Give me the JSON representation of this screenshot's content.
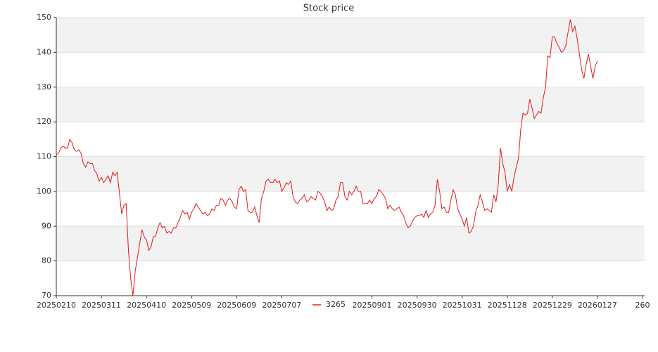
{
  "chart_data": {
    "type": "line",
    "title": "Stock price",
    "xlim": [
      0,
      260
    ],
    "xticks": [
      {
        "value": 0,
        "label": "20250210"
      },
      {
        "value": 20,
        "label": "20250311"
      },
      {
        "value": 40,
        "label": "20250410"
      },
      {
        "value": 60,
        "label": "20250509"
      },
      {
        "value": 80,
        "label": "20250609"
      },
      {
        "value": 100,
        "label": "20250707"
      },
      {
        "value": 140,
        "label": "20250901"
      },
      {
        "value": 160,
        "label": "20250930"
      },
      {
        "value": 180,
        "label": "20251031"
      },
      {
        "value": 200,
        "label": "20251128"
      },
      {
        "value": 220,
        "label": "20251229"
      },
      {
        "value": 240,
        "label": "20260127"
      },
      {
        "value": 260,
        "label": "260"
      }
    ],
    "ylim": [
      70,
      150
    ],
    "yticks": [
      70,
      80,
      90,
      100,
      110,
      120,
      130,
      140,
      150
    ],
    "grid": true,
    "legend": "bottom",
    "series": [
      {
        "name": "3265",
        "color": "#e41a1c",
        "values": [
          110.5,
          111,
          112.5,
          113,
          112.5,
          112.5,
          115,
          114,
          112,
          111.5,
          112,
          111,
          108,
          107,
          108.5,
          108,
          108,
          106,
          105,
          103,
          104,
          102.5,
          103.5,
          104.5,
          102.5,
          105.5,
          104.5,
          105.5,
          99.5,
          93.5,
          96,
          96.5,
          83,
          75,
          70,
          77,
          81,
          85,
          89,
          87,
          86,
          83,
          84,
          87,
          87,
          89.5,
          91,
          89.5,
          90,
          88,
          88.5,
          88,
          89.5,
          89.5,
          91,
          92.5,
          94.5,
          93.5,
          94,
          92,
          94,
          95,
          96.5,
          95.5,
          94.5,
          93.5,
          94,
          93,
          93.5,
          95,
          94.5,
          96,
          96,
          98,
          97.5,
          96,
          97.5,
          98,
          97,
          95.5,
          95,
          100.5,
          101.5,
          100,
          100.5,
          94.5,
          94,
          94,
          95.5,
          93,
          91,
          98,
          100,
          103,
          103.5,
          102.5,
          102.5,
          103.5,
          102.5,
          103,
          100,
          101,
          102.5,
          102,
          103,
          98.5,
          97,
          96.5,
          97.5,
          98,
          99,
          97,
          97.5,
          98.5,
          98,
          97.5,
          100,
          99.5,
          98.5,
          97,
          94.5,
          95.5,
          94.5,
          95,
          97.5,
          98.5,
          102.5,
          102.5,
          98.5,
          97.5,
          100,
          99,
          100,
          101.5,
          100,
          100,
          96.5,
          96.5,
          96.5,
          97.5,
          96.5,
          98,
          98.5,
          100.5,
          100,
          99,
          98,
          95,
          96,
          95,
          94.5,
          95,
          95.5,
          94,
          93,
          91,
          89.5,
          90,
          91.5,
          92.5,
          93,
          93,
          93.5,
          92.5,
          94.5,
          92.5,
          93.5,
          94,
          96,
          103.5,
          100,
          95,
          95.5,
          94,
          94,
          97.5,
          100.5,
          99,
          95,
          93.5,
          92,
          90,
          92.5,
          88,
          88.5,
          90,
          94,
          96,
          99,
          97,
          94.5,
          95,
          94.5,
          94,
          99,
          97,
          102,
          112.5,
          108,
          105.5,
          100,
          102,
          100,
          104,
          107,
          109.5,
          118,
          122.5,
          122,
          122.5,
          126.5,
          124,
          121,
          122,
          123,
          122.5,
          127,
          130,
          139,
          138.5,
          144.5,
          144.5,
          142.5,
          141.5,
          140,
          140.5,
          142,
          146,
          149.5,
          146,
          147.5,
          144,
          139.5,
          135,
          132.5,
          136.5,
          139.5,
          136,
          132.5,
          136,
          137.5
        ]
      }
    ]
  }
}
